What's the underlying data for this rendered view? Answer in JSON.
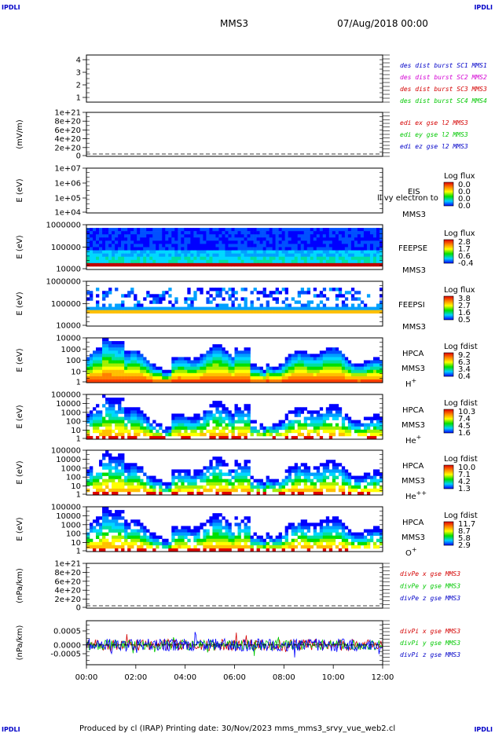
{
  "corner_label": "IPDLI",
  "header": {
    "title": "MMS3",
    "datetime": "07/Aug/2018 00:00"
  },
  "footer": {
    "text": "Produced by cl (IRAP)   Printing date: 30/Nov/2023   mms_mms3_srvy_vue_web2.cl"
  },
  "colors": {
    "red": "#d40000",
    "green": "#00c800",
    "blue": "#0000c8",
    "magenta": "#d400d4"
  },
  "chart_data": {
    "type": "heatmap",
    "x_axis": {
      "ticks": [
        "00:00",
        "02:00",
        "04:00",
        "06:00",
        "08:00",
        "10:00",
        "12:00"
      ],
      "range": [
        "00:00",
        "12:00"
      ]
    },
    "panels": [
      {
        "id": "p1",
        "type": "line",
        "ylabel": "",
        "yticks": [
          "4",
          "3",
          "2",
          "1"
        ],
        "ylim": [
          0.6,
          4.4
        ],
        "legend": [
          {
            "text": "des dist burst SC1 MMS1",
            "color": "#0000c8"
          },
          {
            "text": "des dist burst SC2 MMS2",
            "color": "#d400d4"
          },
          {
            "text": "des dist burst SC3 MMS3",
            "color": "#d40000"
          },
          {
            "text": "des dist burst SC4 MMS4",
            "color": "#00c800"
          }
        ]
      },
      {
        "id": "p2",
        "type": "line",
        "ylabel": "(mV/m)",
        "yticks": [
          "1e+21",
          "8e+20",
          "6e+20",
          "4e+20",
          "2e+20",
          "0"
        ],
        "ylim": [
          0,
          1e+21
        ],
        "zero_line": true,
        "legend": [
          {
            "text": "edi ex gse l2 MMS3",
            "color": "#d40000"
          },
          {
            "text": "edi ey gse l2 MMS3",
            "color": "#00c800"
          },
          {
            "text": "edi ez gse l2 MMS3",
            "color": "#0000c8"
          }
        ]
      },
      {
        "id": "p3",
        "type": "heatmap",
        "ylabel": "E (eV)",
        "yticks": [
          "1e+07",
          "1e+06",
          "1e+05",
          "1e+04"
        ],
        "yscale": "log",
        "labels": [
          "EIS",
          "MMS3"
        ],
        "overlay_text": "ll vy electron to",
        "cbar_title": "Log flux",
        "cbar_ticks": [
          "0.0",
          "0.0",
          "0.0",
          "0.0"
        ]
      },
      {
        "id": "p4",
        "type": "heatmap",
        "ylabel": "E (eV)",
        "yticks": [
          "1000000",
          "100000",
          "10000"
        ],
        "yscale": "log",
        "labels": [
          "FEEPSE",
          "MMS3"
        ],
        "cbar_title": "Log flux",
        "cbar_ticks": [
          "2.8",
          "1.7",
          "0.6",
          "-0.4"
        ]
      },
      {
        "id": "p5",
        "type": "heatmap",
        "ylabel": "E (eV)",
        "yticks": [
          "1000000",
          "100000",
          "10000"
        ],
        "yscale": "log",
        "labels": [
          "FEEPSI",
          "MMS3"
        ],
        "cbar_title": "Log flux",
        "cbar_ticks": [
          "3.8",
          "2.7",
          "1.6",
          "0.5"
        ]
      },
      {
        "id": "p6",
        "type": "heatmap",
        "ylabel": "E (eV)",
        "yticks": [
          "10000",
          "1000",
          "100",
          "10",
          "1"
        ],
        "yscale": "log",
        "labels": [
          "HPCA",
          "MMS3"
        ],
        "species": "H",
        "species_sup": "+",
        "cbar_title": "Log fdist",
        "cbar_ticks": [
          "9.2",
          "6.3",
          "3.4",
          "0.4"
        ]
      },
      {
        "id": "p7",
        "type": "heatmap",
        "ylabel": "E (eV)",
        "yticks": [
          "100000",
          "10000",
          "1000",
          "100",
          "10",
          "1"
        ],
        "yscale": "log",
        "labels": [
          "HPCA",
          "MMS3"
        ],
        "species": "He",
        "species_sup": "+",
        "cbar_title": "Log fdist",
        "cbar_ticks": [
          "10.3",
          "7.4",
          "4.5",
          "1.6"
        ]
      },
      {
        "id": "p8",
        "type": "heatmap",
        "ylabel": "E (eV)",
        "yticks": [
          "100000",
          "10000",
          "1000",
          "100",
          "10",
          "1"
        ],
        "yscale": "log",
        "labels": [
          "HPCA",
          "MMS3"
        ],
        "species": "He",
        "species_sup": "++",
        "cbar_title": "Log fdist",
        "cbar_ticks": [
          "10.0",
          "7.1",
          "4.2",
          "1.3"
        ]
      },
      {
        "id": "p9",
        "type": "heatmap",
        "ylabel": "E (eV)",
        "yticks": [
          "100000",
          "10000",
          "1000",
          "100",
          "10",
          "1"
        ],
        "yscale": "log",
        "labels": [
          "HPCA",
          "MMS3"
        ],
        "species": "O",
        "species_sup": "+",
        "cbar_title": "Log fdist",
        "cbar_ticks": [
          "11.7",
          "8.7",
          "5.8",
          "2.9"
        ]
      },
      {
        "id": "p10",
        "type": "line",
        "ylabel": "(nPa/km)",
        "yticks": [
          "1e+21",
          "8e+20",
          "6e+20",
          "4e+20",
          "2e+20",
          "0"
        ],
        "ylim": [
          0,
          1e+21
        ],
        "zero_line": true,
        "legend": [
          {
            "text": "divPe x gse MMS3",
            "color": "#d40000"
          },
          {
            "text": "divPe y gse MMS3",
            "color": "#00c800"
          },
          {
            "text": "divPe z gse MMS3",
            "color": "#0000c8"
          }
        ]
      },
      {
        "id": "p11",
        "type": "line",
        "ylabel": "(nPa/km)",
        "yticks": [
          "0.0005",
          "0.0000",
          "-0.0005"
        ],
        "ylim": [
          -0.0009,
          0.0009
        ],
        "zero_line": true,
        "legend": [
          {
            "text": "divPi x gse MMS3",
            "color": "#d40000"
          },
          {
            "text": "divPi y gse MMS3",
            "color": "#00c800"
          },
          {
            "text": "divPi z gse MMS3",
            "color": "#0000c8"
          }
        ]
      }
    ]
  }
}
